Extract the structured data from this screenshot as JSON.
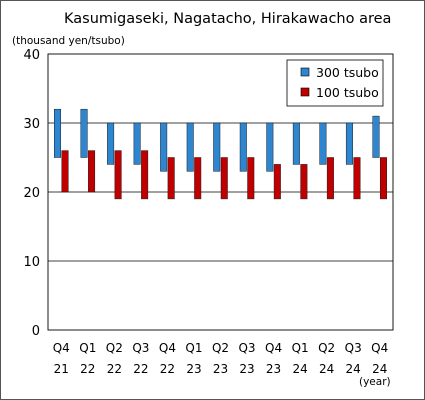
{
  "chart_data": {
    "type": "bar",
    "title": "Kasumigaseki, Nagatacho, Hirakawacho area",
    "ylabel": "(thousand yen/tsubo)",
    "xunit": "(year)",
    "ylim": [
      0,
      40
    ],
    "yticks": [
      "0",
      "10",
      "20",
      "30",
      "40"
    ],
    "grid": true,
    "legend_position": "top-right",
    "categories": [
      {
        "quarter": "Q4",
        "year": "21"
      },
      {
        "quarter": "Q1",
        "year": "22"
      },
      {
        "quarter": "Q2",
        "year": "22"
      },
      {
        "quarter": "Q3",
        "year": "22"
      },
      {
        "quarter": "Q4",
        "year": "22"
      },
      {
        "quarter": "Q1",
        "year": "23"
      },
      {
        "quarter": "Q2",
        "year": "23"
      },
      {
        "quarter": "Q3",
        "year": "23"
      },
      {
        "quarter": "Q4",
        "year": "23"
      },
      {
        "quarter": "Q1",
        "year": "24"
      },
      {
        "quarter": "Q2",
        "year": "24"
      },
      {
        "quarter": "Q3",
        "year": "24"
      },
      {
        "quarter": "Q4",
        "year": "24"
      }
    ],
    "series": [
      {
        "name": "300 tsubo",
        "color": "#2e86d1",
        "ranges": [
          [
            25,
            32
          ],
          [
            25,
            32
          ],
          [
            24,
            30
          ],
          [
            24,
            30
          ],
          [
            23,
            30
          ],
          [
            23,
            30
          ],
          [
            23,
            30
          ],
          [
            23,
            30
          ],
          [
            23,
            30
          ],
          [
            24,
            30
          ],
          [
            24,
            30
          ],
          [
            24,
            30
          ],
          [
            25,
            31
          ]
        ]
      },
      {
        "name": "100 tsubo",
        "color": "#c00000",
        "ranges": [
          [
            20,
            26
          ],
          [
            20,
            26
          ],
          [
            19,
            26
          ],
          [
            19,
            26
          ],
          [
            19,
            25
          ],
          [
            19,
            25
          ],
          [
            19,
            25
          ],
          [
            19,
            25
          ],
          [
            19,
            24
          ],
          [
            19,
            24
          ],
          [
            19,
            25
          ],
          [
            19,
            25
          ],
          [
            19,
            25
          ]
        ]
      }
    ]
  }
}
